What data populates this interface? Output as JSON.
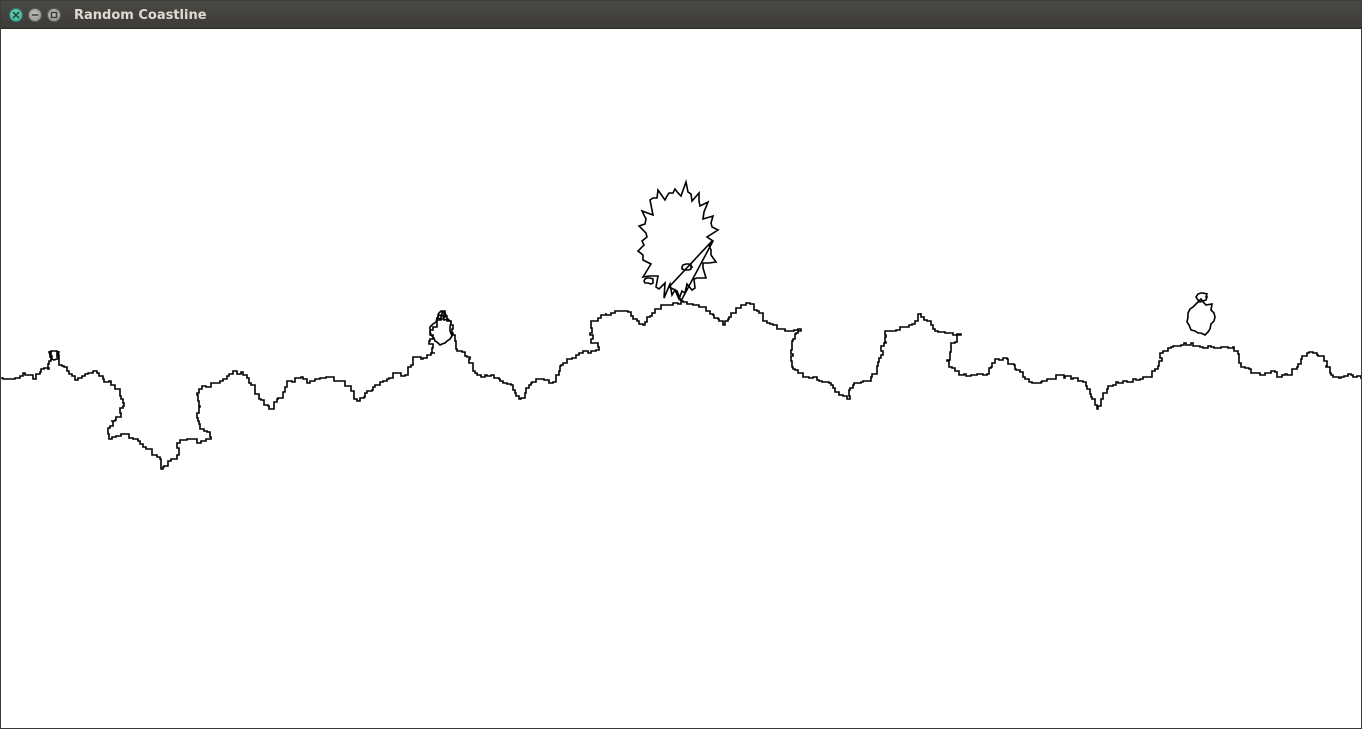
{
  "window": {
    "title": "Random Coastline",
    "controls": {
      "close": "close-icon",
      "minimize": "minimize-icon",
      "maximize": "maximize-icon"
    },
    "colors": {
      "titlebar": "#3c3b37",
      "title_text": "#dfdbd2",
      "close_button": "#3aa58c",
      "canvas_background": "#ffffff",
      "coastline_stroke": "#000000"
    }
  },
  "canvas": {
    "content": "random fractal coastline curve"
  }
}
